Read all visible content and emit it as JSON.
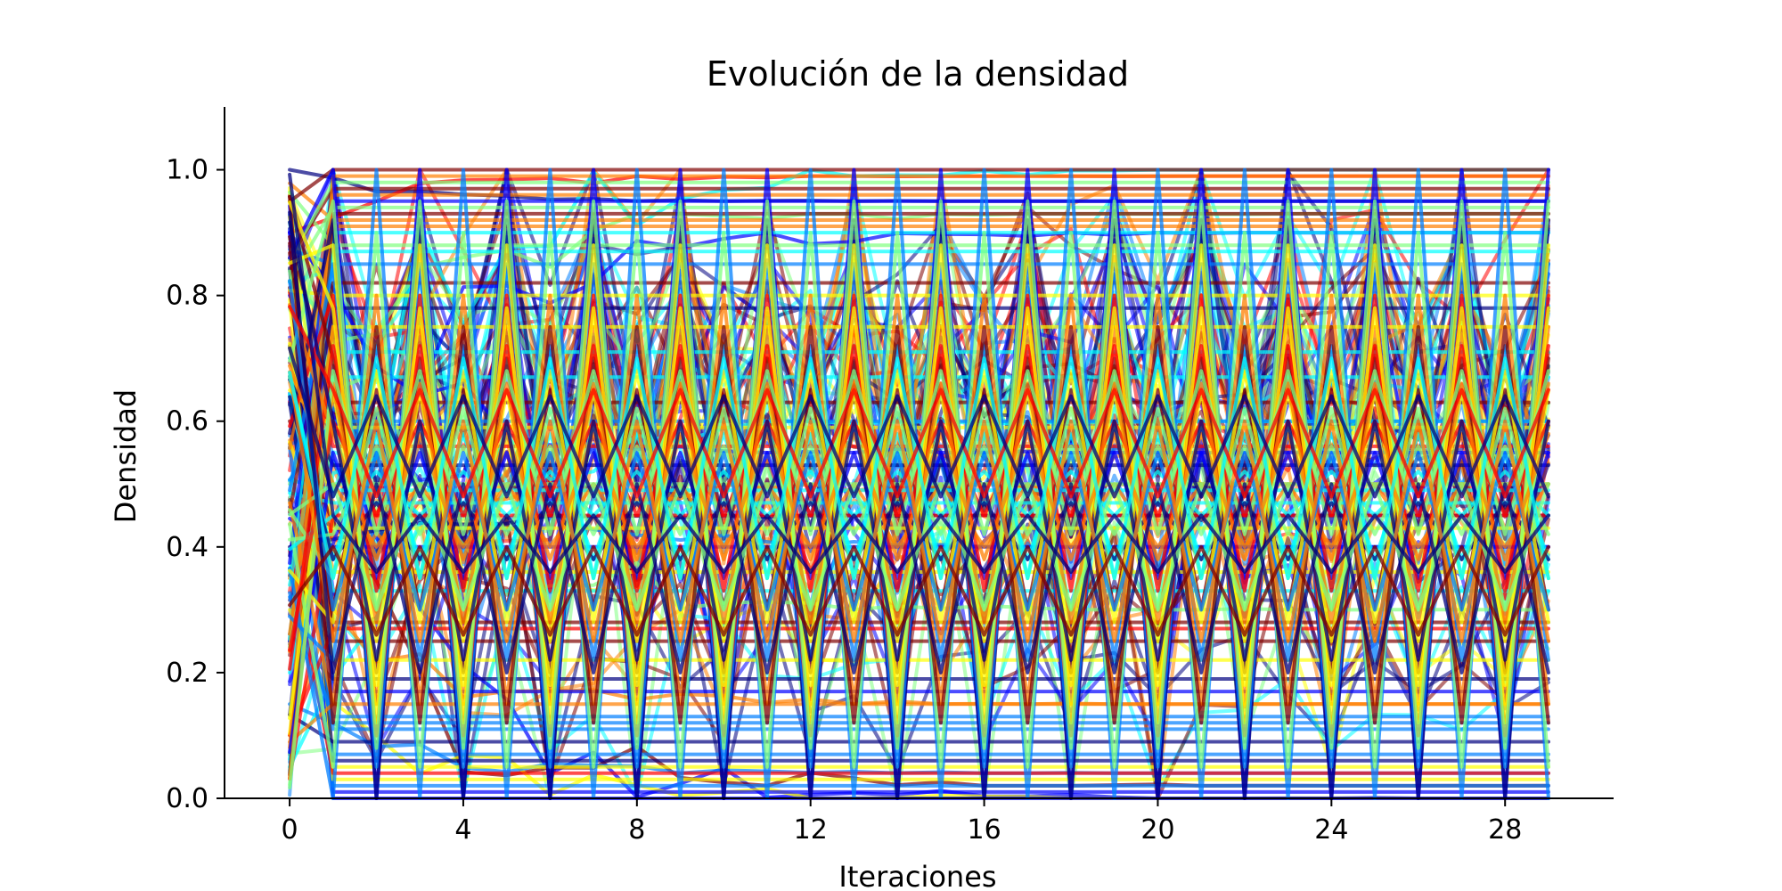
{
  "chart_data": {
    "type": "line",
    "title": "Evolución de la densidad",
    "xlabel": "Iteraciones",
    "ylabel": "Densidad",
    "xlim": [
      -1.5,
      30.5
    ],
    "ylim": [
      0.0,
      1.1
    ],
    "x_ticks": [
      0,
      4,
      8,
      12,
      16,
      20,
      24,
      28
    ],
    "y_ticks": [
      0.0,
      0.2,
      0.4,
      0.6,
      0.8,
      1.0
    ],
    "y_tick_labels": [
      "0.0",
      "0.2",
      "0.4",
      "0.6",
      "0.8",
      "1.0"
    ],
    "x_tick_labels": [
      "0",
      "4",
      "8",
      "12",
      "16",
      "20",
      "24",
      "28"
    ],
    "iterations": 30,
    "grid": false,
    "legend": "none",
    "colormap": "jet",
    "colors": [
      "#00007f",
      "#0000ff",
      "#007fff",
      "#00ffff",
      "#7fff7f",
      "#ffff00",
      "#ff7f00",
      "#ff0000",
      "#7f0000"
    ],
    "series_groups": {
      "constant_levels": [
        0.0,
        0.01,
        0.02,
        0.03,
        0.04,
        0.05,
        0.06,
        0.07,
        0.09,
        0.11,
        0.12,
        0.13,
        0.15,
        0.17,
        0.19,
        0.22,
        0.25,
        0.27,
        0.28,
        0.33,
        0.36,
        0.4,
        0.43,
        0.45,
        0.47,
        0.49,
        0.5,
        0.53,
        0.56,
        0.59,
        0.6,
        0.63,
        0.67,
        0.71,
        0.75,
        0.78,
        0.8,
        0.82,
        0.85,
        0.87,
        0.88,
        0.9,
        0.91,
        0.92,
        0.93,
        0.94,
        0.95,
        0.96,
        0.97,
        0.98,
        0.99,
        1.0
      ],
      "period2_oscillations": [
        [
          0.0,
          1.0
        ],
        [
          0.0,
          0.92
        ],
        [
          0.05,
          0.85
        ],
        [
          0.1,
          0.8
        ],
        [
          0.15,
          0.75
        ],
        [
          0.2,
          0.7
        ],
        [
          0.25,
          0.65
        ],
        [
          0.3,
          0.6
        ],
        [
          0.35,
          0.55
        ],
        [
          0.4,
          0.5
        ],
        [
          1.0,
          0.0
        ],
        [
          0.9,
          0.05
        ],
        [
          0.8,
          0.15
        ],
        [
          0.72,
          0.22
        ],
        [
          0.65,
          0.3
        ],
        [
          0.58,
          0.38
        ],
        [
          0.52,
          0.45
        ],
        [
          0.47,
          0.38
        ],
        [
          0.75,
          0.12
        ],
        [
          0.68,
          0.28
        ],
        [
          0.62,
          0.35
        ],
        [
          0.56,
          0.42
        ],
        [
          0.45,
          0.6
        ],
        [
          0.33,
          0.72
        ],
        [
          0.28,
          0.66
        ],
        [
          0.18,
          0.78
        ],
        [
          0.12,
          0.88
        ],
        [
          0.08,
          0.95
        ],
        [
          0.38,
          0.58
        ],
        [
          0.42,
          0.68
        ],
        [
          0.22,
          0.6
        ],
        [
          0.3,
          0.5
        ],
        [
          0.55,
          0.3
        ],
        [
          0.6,
          0.25
        ],
        [
          0.7,
          0.35
        ],
        [
          0.5,
          0.2
        ],
        [
          0.48,
          0.65
        ],
        [
          0.36,
          0.45
        ],
        [
          0.26,
          0.4
        ],
        [
          0.64,
          0.48
        ]
      ],
      "converging": [
        {
          "start": 1.0,
          "end": 0.95
        },
        {
          "start": 0.9,
          "end": 0.99
        },
        {
          "start": 0.2,
          "end": 1.0
        },
        {
          "start": 0.5,
          "end": 0.93
        },
        {
          "start": 0.8,
          "end": 0.0
        },
        {
          "start": 0.6,
          "end": 0.02
        },
        {
          "start": 0.3,
          "end": 0.0
        },
        {
          "start": 0.15,
          "end": 0.04
        },
        {
          "start": 0.9,
          "end": 0.55
        },
        {
          "start": 0.1,
          "end": 0.5
        },
        {
          "start": 0.7,
          "end": 0.4
        },
        {
          "start": 0.4,
          "end": 0.45
        },
        {
          "start": 0.05,
          "end": 0.6
        },
        {
          "start": 0.95,
          "end": 0.3
        },
        {
          "start": 0.35,
          "end": 0.15
        },
        {
          "start": 0.25,
          "end": 0.9
        }
      ],
      "noisy_count": 60
    }
  }
}
